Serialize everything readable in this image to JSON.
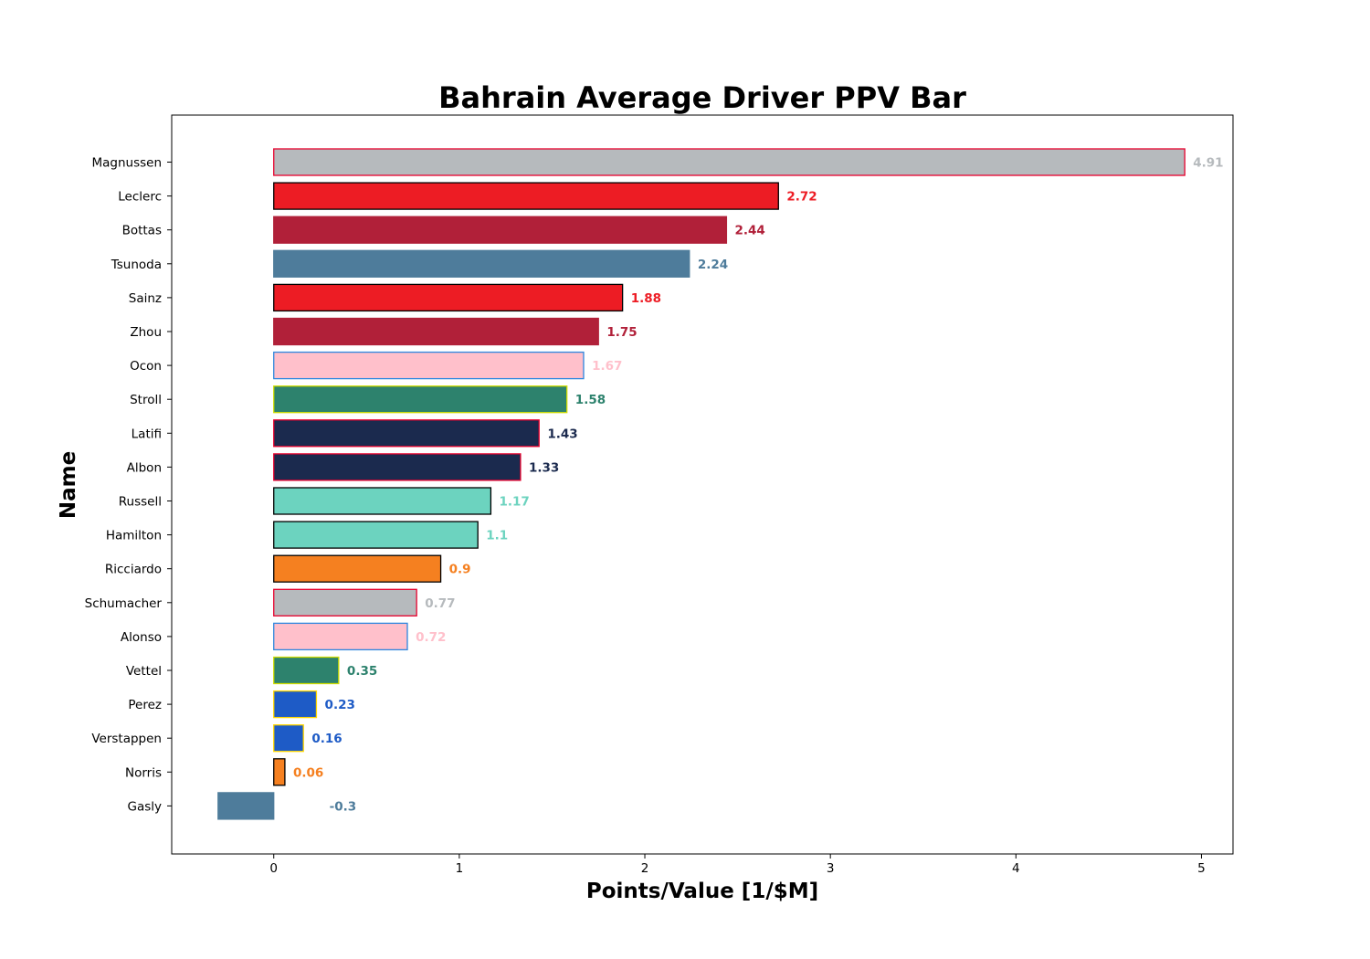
{
  "chart_data": {
    "type": "bar",
    "orientation": "horizontal",
    "title": "Bahrain Average Driver PPV Bar",
    "xlabel": "Points/Value [1/$M]",
    "ylabel": "Name",
    "xlim": [
      -0.55,
      5.17
    ],
    "xticks": [
      "0",
      "1",
      "2",
      "3",
      "4",
      "5"
    ],
    "grid": false,
    "bars": [
      {
        "name": "Magnussen",
        "value": 4.91,
        "label": "4.91",
        "fill": "#b6babd",
        "edge": "#e8002d"
      },
      {
        "name": "Leclerc",
        "value": 2.72,
        "label": "2.72",
        "fill": "#ed1c24",
        "edge": "#000000"
      },
      {
        "name": "Bottas",
        "value": 2.44,
        "label": "2.44",
        "fill": "#b12039",
        "edge": "#b12039"
      },
      {
        "name": "Tsunoda",
        "value": 2.24,
        "label": "2.24",
        "fill": "#4e7c9b",
        "edge": "#4e7c9b"
      },
      {
        "name": "Sainz",
        "value": 1.88,
        "label": "1.88",
        "fill": "#ed1c24",
        "edge": "#000000"
      },
      {
        "name": "Zhou",
        "value": 1.75,
        "label": "1.75",
        "fill": "#b12039",
        "edge": "#b12039"
      },
      {
        "name": "Ocon",
        "value": 1.67,
        "label": "1.67",
        "fill": "#ffc0cb",
        "edge": "#2e86de"
      },
      {
        "name": "Stroll",
        "value": 1.58,
        "label": "1.58",
        "fill": "#2d826d",
        "edge": "#cedc00"
      },
      {
        "name": "Latifi",
        "value": 1.43,
        "label": "1.43",
        "fill": "#1b2a4e",
        "edge": "#e8002d"
      },
      {
        "name": "Albon",
        "value": 1.33,
        "label": "1.33",
        "fill": "#1b2a4e",
        "edge": "#e8002d"
      },
      {
        "name": "Russell",
        "value": 1.17,
        "label": "1.17",
        "fill": "#6cd3bf",
        "edge": "#000000"
      },
      {
        "name": "Hamilton",
        "value": 1.1,
        "label": "1.1",
        "fill": "#6cd3bf",
        "edge": "#000000"
      },
      {
        "name": "Ricciardo",
        "value": 0.9,
        "label": "0.9",
        "fill": "#f58020",
        "edge": "#000000"
      },
      {
        "name": "Schumacher",
        "value": 0.77,
        "label": "0.77",
        "fill": "#b6babd",
        "edge": "#e8002d"
      },
      {
        "name": "Alonso",
        "value": 0.72,
        "label": "0.72",
        "fill": "#ffc0cb",
        "edge": "#2e86de"
      },
      {
        "name": "Vettel",
        "value": 0.35,
        "label": "0.35",
        "fill": "#2d826d",
        "edge": "#cedc00"
      },
      {
        "name": "Perez",
        "value": 0.23,
        "label": "0.23",
        "fill": "#1e5bc6",
        "edge": "#ffd700"
      },
      {
        "name": "Verstappen",
        "value": 0.16,
        "label": "0.16",
        "fill": "#1e5bc6",
        "edge": "#ffd700"
      },
      {
        "name": "Norris",
        "value": 0.06,
        "label": "0.06",
        "fill": "#f58020",
        "edge": "#000000"
      },
      {
        "name": "Gasly",
        "value": -0.3,
        "label": "-0.3",
        "fill": "#4e7c9b",
        "edge": "#4e7c9b"
      }
    ]
  }
}
